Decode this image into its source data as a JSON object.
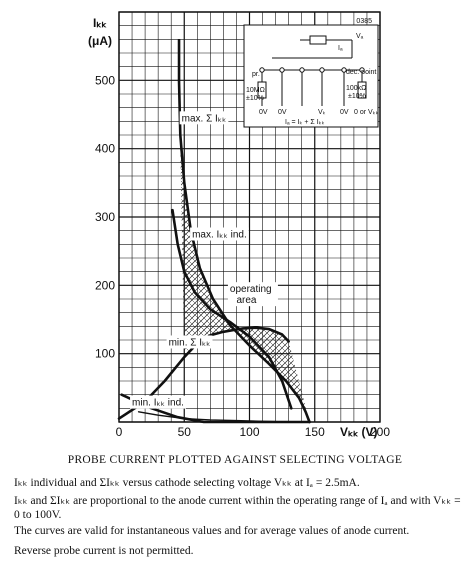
{
  "chart_data": {
    "type": "line",
    "x_axis": {
      "label": "Vₖₖ (V)",
      "range": [
        0,
        200
      ],
      "ticks": [
        0,
        50,
        100,
        150,
        200
      ]
    },
    "y_axis": {
      "label": "Iₖₖ (μA)",
      "range": [
        0,
        600
      ],
      "ticks": [
        100,
        200,
        300,
        400,
        500
      ]
    },
    "grid": true,
    "figure_code": "0385",
    "series": [
      {
        "name": "max. Σ Iₖₖ",
        "x": [
          46,
          47,
          50,
          55,
          62,
          72,
          85,
          100,
          115,
          128,
          138,
          143,
          146
        ],
        "y": [
          500,
          420,
          350,
          280,
          225,
          180,
          142,
          112,
          85,
          60,
          35,
          15,
          0
        ]
      },
      {
        "name": "max. Iₖₖ ind.",
        "x": [
          41,
          45,
          50,
          58,
          70,
          86,
          100,
          115,
          125,
          132
        ],
        "y": [
          310,
          260,
          220,
          190,
          165,
          145,
          125,
          95,
          60,
          20
        ]
      },
      {
        "name": "min. Σ Iₖₖ",
        "x": [
          0,
          20,
          35,
          50,
          60,
          70,
          80,
          95,
          105,
          115,
          125,
          130
        ],
        "y": [
          5,
          30,
          60,
          95,
          115,
          127,
          132,
          137,
          138,
          136,
          128,
          118
        ]
      },
      {
        "name": "min. Iₖₖ ind.",
        "x": [
          2,
          25,
          45,
          65,
          85,
          100,
          115,
          128,
          138,
          146
        ],
        "y": [
          40,
          20,
          7,
          0,
          0,
          0,
          0,
          0,
          0,
          0
        ]
      },
      {
        "name": "",
        "x": [
          15,
          30,
          50,
          70,
          90,
          110,
          130,
          146
        ],
        "y": [
          15,
          10,
          5,
          3,
          2,
          1,
          0,
          0
        ]
      }
    ],
    "annotations": [
      "operating area"
    ],
    "inset": {
      "labels": [
        "Vₐ",
        "Iₐ",
        "pr.",
        "10MΩ",
        "±10%",
        "0V",
        "0V",
        "Vₖ",
        "dec. point",
        "100kΩ",
        "±10%",
        "0V",
        "0 or Vₖₖ",
        "Iₐ = Iₖ + Σ Iₖₖ"
      ]
    }
  },
  "texts": {
    "caption": "PROBE CURRENT PLOTTED AGAINST SELECTING VOLTAGE",
    "para1": "Iₖₖ individual and ΣIₖₖ versus cathode selecting voltage Vₖₖ at Iₐ = 2.5mA.",
    "para2": "Iₖₖ and ΣIₖₖ are proportional to the anode current within the operating range of Iₐ and with Vₖₖ = 0 to 100V.",
    "para3": "The curves are valid for instantaneous values and for average values of anode current.",
    "para4": "Reverse probe current is not permitted."
  }
}
